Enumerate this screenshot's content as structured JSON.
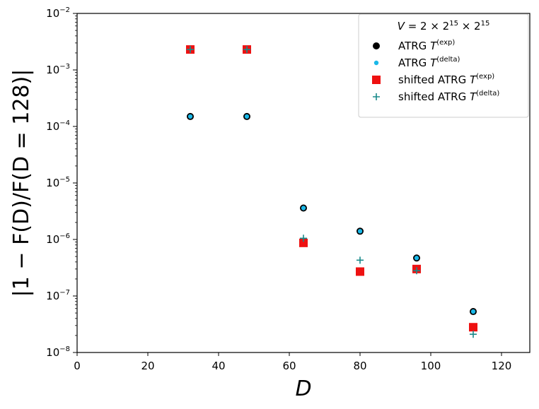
{
  "chart_data": {
    "type": "scatter",
    "title": "",
    "xlabel": "D",
    "ylabel": "|1 − F(D)/F(D = 128)|",
    "xlim": [
      0,
      128
    ],
    "ylim": [
      1e-08,
      0.01
    ],
    "yscale": "log",
    "x_ticks": [
      0,
      20,
      40,
      60,
      80,
      100,
      120
    ],
    "y_ticks": [
      {
        "value": 1e-08,
        "base": "10",
        "exp": "−8"
      },
      {
        "value": 1e-07,
        "base": "10",
        "exp": "−7"
      },
      {
        "value": 1e-06,
        "base": "10",
        "exp": "−6"
      },
      {
        "value": 1e-05,
        "base": "10",
        "exp": "−5"
      },
      {
        "value": 0.0001,
        "base": "10",
        "exp": "−4"
      },
      {
        "value": 0.001,
        "base": "10",
        "exp": "−3"
      },
      {
        "value": 0.01,
        "base": "10",
        "exp": "−2"
      }
    ],
    "legend": {
      "position": "top-right",
      "title": "V = 2 × 2^15 × 2^15",
      "title_parts": {
        "lhs": "V",
        "eq": " = 2 × 2",
        "exp1": "15",
        "mid": " × 2",
        "exp2": "15"
      }
    },
    "series": [
      {
        "name": "ATRG T(exp)",
        "label_main": "ATRG T",
        "label_sup": "(exp)",
        "marker": "circle",
        "color": "#000000",
        "x": [
          32,
          48,
          64,
          80,
          96,
          112
        ],
        "y": [
          0.00015,
          0.00015,
          3.6e-06,
          1.4e-06,
          4.7e-07,
          5.3e-08
        ]
      },
      {
        "name": "ATRG T(delta)",
        "label_main": "ATRG T",
        "label_sup": "(delta)",
        "marker": "dot",
        "color": "#1ab8e8",
        "x": [
          32,
          48,
          64,
          80,
          96,
          112
        ],
        "y": [
          0.00015,
          0.00015,
          3.6e-06,
          1.4e-06,
          4.7e-07,
          5.3e-08
        ]
      },
      {
        "name": "shifted ATRG T(exp)",
        "label_main": "shifted ATRG T",
        "label_sup": "(exp)",
        "marker": "square",
        "color": "#ee1111",
        "x": [
          32,
          48,
          64,
          80,
          96,
          112
        ],
        "y": [
          0.0023,
          0.0023,
          8.7e-07,
          2.7e-07,
          3e-07,
          2.8e-08
        ]
      },
      {
        "name": "shifted ATRG T(delta)",
        "label_main": "shifted ATRG T",
        "label_sup": "(delta)",
        "marker": "plus",
        "color": "#1a8a8a",
        "x": [
          32,
          48,
          64,
          80,
          96,
          112
        ],
        "y": [
          0.0023,
          0.0023,
          1.05e-06,
          4.3e-07,
          2.8e-07,
          2.1e-08
        ]
      }
    ]
  }
}
